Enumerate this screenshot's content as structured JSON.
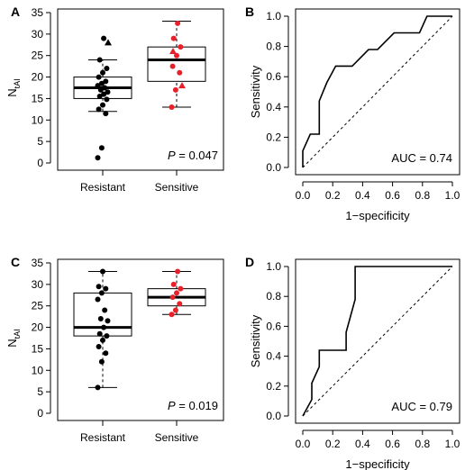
{
  "chart_data": [
    {
      "panel": "A",
      "type": "box",
      "categories": [
        "Resistant",
        "Sensitive"
      ],
      "ylabel_main": "N",
      "ylabel_sub": "tAI",
      "ylim": [
        0,
        35
      ],
      "yticks": [
        0,
        5,
        10,
        15,
        20,
        25,
        30,
        35
      ],
      "p_prefix": "P",
      "p_value": "= 0.047",
      "boxes": [
        {
          "category": "Resistant",
          "whisker_low": 12,
          "q1": 15,
          "median": 17.5,
          "q3": 20,
          "whisker_high": 24
        },
        {
          "category": "Sensitive",
          "whisker_low": 13,
          "q1": 19,
          "median": 24,
          "q3": 27,
          "whisker_high": 33
        }
      ],
      "points": [
        {
          "category": "Resistant",
          "values": [
            1.2,
            3.5,
            11.5,
            12.5,
            13.5,
            14.8,
            15.5,
            16,
            16.5,
            17,
            17.5,
            18,
            18.5,
            19,
            20,
            21,
            22,
            24,
            29
          ],
          "triangles": [
            28
          ],
          "color": "#000000"
        },
        {
          "category": "Sensitive",
          "values": [
            13,
            17,
            21,
            22.5,
            25,
            27,
            29,
            32.5
          ],
          "triangles": [
            18,
            26
          ],
          "color": "#e8202a"
        }
      ]
    },
    {
      "panel": "B",
      "type": "line",
      "xlabel": "1−specificity",
      "ylabel": "Sensitivity",
      "xlim": [
        0,
        1
      ],
      "ylim": [
        0,
        1
      ],
      "xticks": [
        "0.0",
        "0.2",
        "0.4",
        "0.6",
        "0.8",
        "1.0"
      ],
      "yticks": [
        "0.0",
        "0.2",
        "0.4",
        "0.6",
        "0.8",
        "1.0"
      ],
      "auc_text": "AUC = 0.74",
      "roc_x": [
        0,
        0,
        0.05,
        0.05,
        0.11,
        0.11,
        0.16,
        0.16,
        0.22,
        0.33,
        0.44,
        0.5,
        0.61,
        0.78,
        0.83,
        1.0
      ],
      "roc_y": [
        0,
        0.11,
        0.22,
        0.22,
        0.22,
        0.44,
        0.56,
        0.56,
        0.67,
        0.67,
        0.78,
        0.78,
        0.89,
        0.89,
        1.0,
        1.0
      ]
    },
    {
      "panel": "C",
      "type": "box",
      "categories": [
        "Resistant",
        "Sensitive"
      ],
      "ylabel_main": "N",
      "ylabel_sub": "tAI",
      "ylim": [
        0,
        35
      ],
      "yticks": [
        0,
        5,
        10,
        15,
        20,
        25,
        30,
        35
      ],
      "p_prefix": "P",
      "p_value": "= 0.019",
      "boxes": [
        {
          "category": "Resistant",
          "whisker_low": 6,
          "q1": 18,
          "median": 20,
          "q3": 28,
          "whisker_high": 33
        },
        {
          "category": "Sensitive",
          "whisker_low": 23,
          "q1": 25,
          "median": 27,
          "q3": 29,
          "whisker_high": 33
        }
      ],
      "points": [
        {
          "category": "Resistant",
          "values": [
            6,
            12,
            14,
            15.5,
            17,
            18,
            18.5,
            20,
            21.5,
            22,
            24,
            26.5,
            28,
            29,
            29.5,
            33
          ],
          "triangles": [],
          "color": "#000000"
        },
        {
          "category": "Sensitive",
          "values": [
            23,
            24,
            25.5,
            27,
            28,
            29,
            30,
            33
          ],
          "triangles": [],
          "color": "#e8202a"
        }
      ]
    },
    {
      "panel": "D",
      "type": "line",
      "xlabel": "1−specificity",
      "ylabel": "Sensitivity",
      "xlim": [
        0,
        1
      ],
      "ylim": [
        0,
        1
      ],
      "xticks": [
        "0.0",
        "0.2",
        "0.4",
        "0.6",
        "0.8",
        "1.0"
      ],
      "yticks": [
        "0.0",
        "0.2",
        "0.4",
        "0.6",
        "0.8",
        "1.0"
      ],
      "auc_text": "AUC = 0.79",
      "roc_x": [
        0,
        0.06,
        0.06,
        0.11,
        0.11,
        0.29,
        0.29,
        0.35,
        0.35,
        0.35,
        1.0
      ],
      "roc_y": [
        0,
        0.11,
        0.22,
        0.33,
        0.44,
        0.44,
        0.56,
        0.78,
        0.89,
        1.0,
        1.0
      ]
    }
  ]
}
